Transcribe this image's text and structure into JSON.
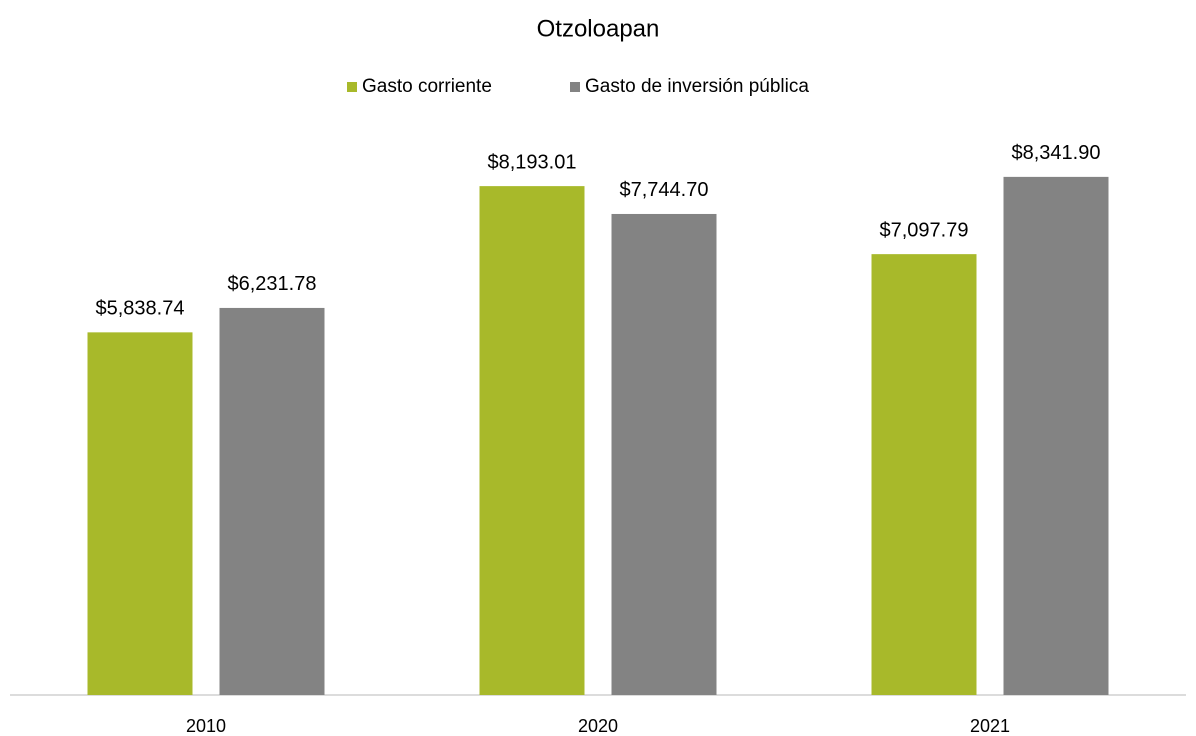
{
  "chart_data": {
    "type": "bar",
    "title": "Otzoloapan",
    "categories": [
      "2010",
      "2020",
      "2021"
    ],
    "series": [
      {
        "name": "Gasto corriente",
        "color": "#a8b92a",
        "values": [
          5838.74,
          8193.01,
          7097.79
        ],
        "value_labels": [
          "$5,838.74",
          "$8,193.01",
          "$7,097.79"
        ]
      },
      {
        "name": "Gasto de inversión pública",
        "color": "#838383",
        "values": [
          6231.78,
          7744.7,
          8341.9
        ],
        "value_labels": [
          "$6,231.78",
          "$7,744.70",
          "$8,341.90"
        ]
      }
    ],
    "ylim": [
      0,
      9000
    ],
    "legend": "top"
  }
}
